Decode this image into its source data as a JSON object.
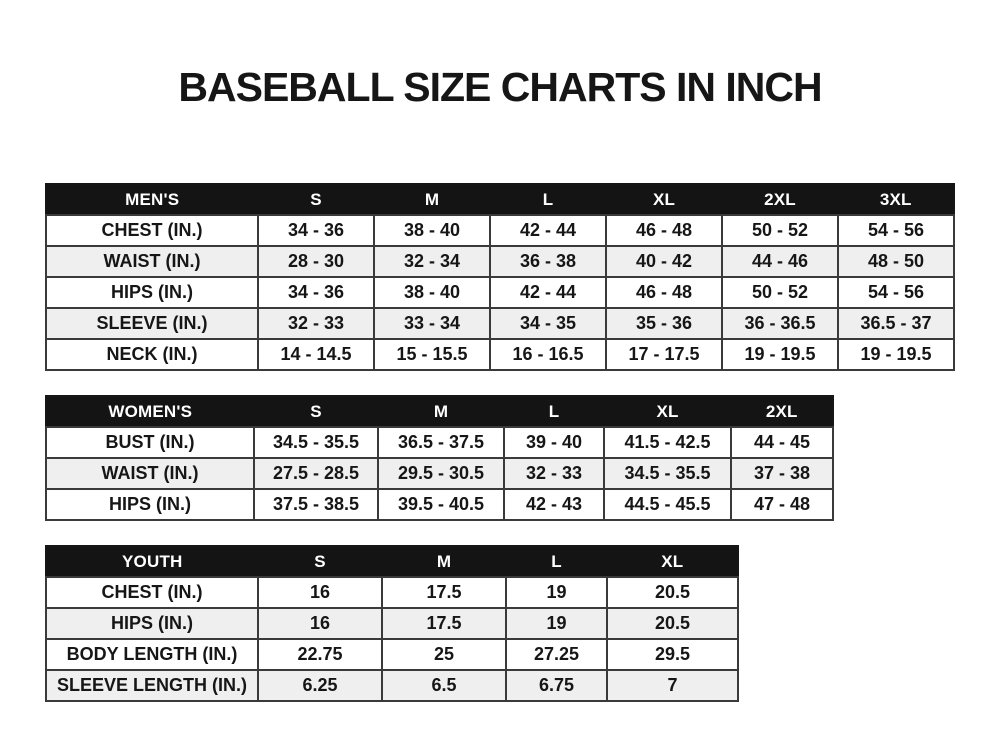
{
  "title": "BASEBALL SIZE CHARTS IN INCH",
  "tables": [
    {
      "id": "mens",
      "header": [
        "MEN'S",
        "S",
        "M",
        "L",
        "XL",
        "2XL",
        "3XL"
      ],
      "rows": [
        [
          "CHEST (IN.)",
          "34 - 36",
          "38 - 40",
          "42 - 44",
          "46 - 48",
          "50 - 52",
          "54 - 56"
        ],
        [
          "WAIST (IN.)",
          "28 - 30",
          "32 - 34",
          "36 - 38",
          "40 - 42",
          "44 - 46",
          "48 - 50"
        ],
        [
          "HIPS (IN.)",
          "34 - 36",
          "38 - 40",
          "42 - 44",
          "46 - 48",
          "50 - 52",
          "54 - 56"
        ],
        [
          "SLEEVE (IN.)",
          "32 - 33",
          "33 - 34",
          "34 - 35",
          "35 - 36",
          "36 - 36.5",
          "36.5 - 37"
        ],
        [
          "NECK (IN.)",
          "14 - 14.5",
          "15 - 15.5",
          "16 - 16.5",
          "17 - 17.5",
          "19 - 19.5",
          "19 - 19.5"
        ]
      ]
    },
    {
      "id": "womens",
      "header": [
        "WOMEN'S",
        "S",
        "M",
        "L",
        "XL",
        "2XL"
      ],
      "rows": [
        [
          "BUST (IN.)",
          "34.5 - 35.5",
          "36.5 - 37.5",
          "39 - 40",
          "41.5 - 42.5",
          "44 - 45"
        ],
        [
          "WAIST (IN.)",
          "27.5 - 28.5",
          "29.5 - 30.5",
          "32 - 33",
          "34.5 - 35.5",
          "37 - 38"
        ],
        [
          "HIPS (IN.)",
          "37.5 - 38.5",
          "39.5 - 40.5",
          "42 - 43",
          "44.5 - 45.5",
          "47 - 48"
        ]
      ]
    },
    {
      "id": "youth",
      "header": [
        "YOUTH",
        "S",
        "M",
        "L",
        "XL"
      ],
      "rows": [
        [
          "CHEST (IN.)",
          "16",
          "17.5",
          "19",
          "20.5"
        ],
        [
          "HIPS (IN.)",
          "16",
          "17.5",
          "19",
          "20.5"
        ],
        [
          "BODY LENGTH (IN.)",
          "22.75",
          "25",
          "27.25",
          "29.5"
        ],
        [
          "SLEEVE LENGTH (IN.)",
          "6.25",
          "6.5",
          "6.75",
          "7"
        ]
      ]
    }
  ],
  "colors": {
    "page_bg": "#ffffff",
    "header_bg": "#141414",
    "header_text": "#ffffff",
    "row_bg": "#ffffff",
    "row_stripe": "#efefef",
    "grid_border": "#3a3a3a",
    "outer_border": "#161616",
    "text": "#161616"
  }
}
